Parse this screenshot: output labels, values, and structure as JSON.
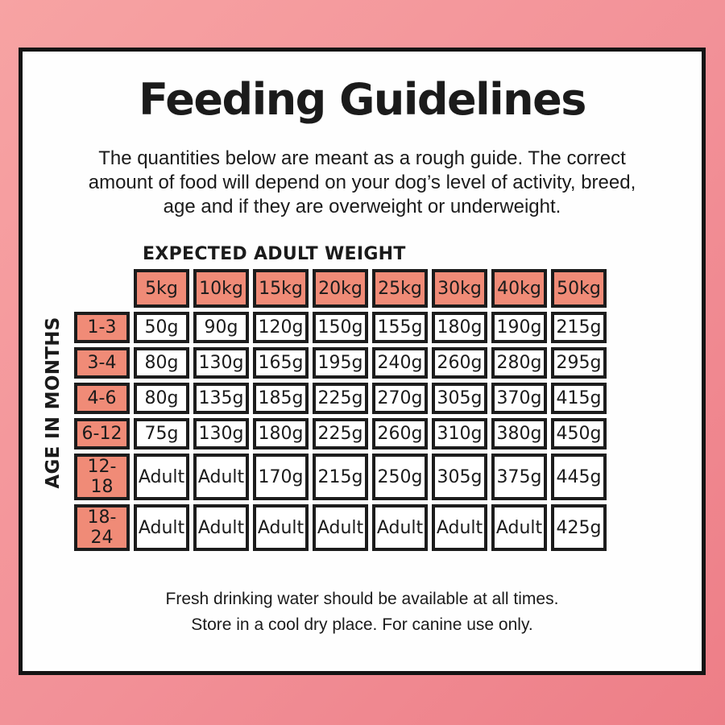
{
  "header": {
    "title": "Feeding Guidelines"
  },
  "intro_lines": [
    "The quantities below are meant as a rough guide. The correct",
    "amount of food will depend on your dog’s level of activity, breed,",
    "age and if they are overweight or underweight."
  ],
  "footer_lines": [
    "Fresh drinking water should be available at all times.",
    "Store in a cool dry place. For canine use only."
  ],
  "colors": {
    "background_gradient_start": "#f7a3a3",
    "background_gradient_end": "#ed7e87",
    "card_background": "#fefefe",
    "card_border": "#141414",
    "accent_cell": "#f08b77",
    "cell_border": "#1c1c1c",
    "text": "#1b1b1b"
  },
  "chart_data": {
    "type": "table",
    "title": "Feeding Guidelines",
    "column_header_label": "EXPECTED ADULT WEIGHT",
    "row_header_label": "AGE IN MONTHS",
    "columns": [
      "5kg",
      "10kg",
      "15kg",
      "20kg",
      "25kg",
      "30kg",
      "40kg",
      "50kg"
    ],
    "row_labels": [
      "1-3",
      "3-4",
      "4-6",
      "6-12",
      "12-18",
      "18-24"
    ],
    "values": [
      [
        "50g",
        "90g",
        "120g",
        "150g",
        "155g",
        "180g",
        "190g",
        "215g"
      ],
      [
        "80g",
        "130g",
        "165g",
        "195g",
        "240g",
        "260g",
        "280g",
        "295g"
      ],
      [
        "80g",
        "135g",
        "185g",
        "225g",
        "270g",
        "305g",
        "370g",
        "415g"
      ],
      [
        "75g",
        "130g",
        "180g",
        "225g",
        "260g",
        "310g",
        "380g",
        "450g"
      ],
      [
        "Adult",
        "Adult",
        "170g",
        "215g",
        "250g",
        "305g",
        "375g",
        "445g"
      ],
      [
        "Adult",
        "Adult",
        "Adult",
        "Adult",
        "Adult",
        "Adult",
        "Adult",
        "425g"
      ]
    ]
  }
}
